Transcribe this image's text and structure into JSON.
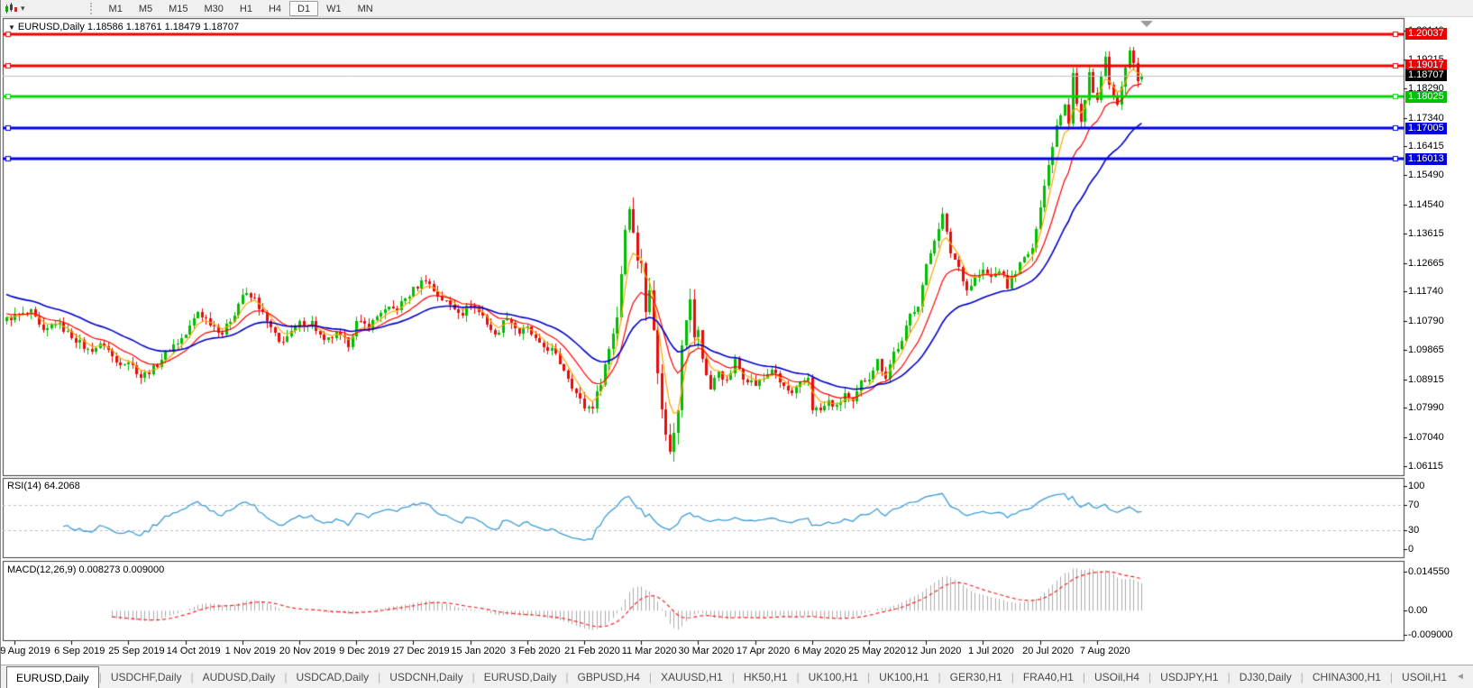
{
  "toolbar": {
    "caret": "▾",
    "periods": [
      "M1",
      "M5",
      "M15",
      "M30",
      "H1",
      "H4",
      "D1",
      "W1",
      "MN"
    ],
    "active_period": "D1"
  },
  "main_chart": {
    "title": "EURUSD,Daily  1.18586 1.18761 1.18479 1.18707",
    "symbol": "EURUSD,Daily",
    "ohlc": {
      "open": 1.18586,
      "high": 1.18761,
      "low": 1.18479,
      "close": 1.18707
    },
    "price_ticks": [
      "1.20140",
      "1.19215",
      "1.18290",
      "1.17340",
      "1.16415",
      "1.15490",
      "1.14540",
      "1.13615",
      "1.12665",
      "1.11740",
      "1.10790",
      "1.09865",
      "1.08915",
      "1.07990",
      "1.07040",
      "1.06115"
    ],
    "price_tags": [
      {
        "label": "1.20037",
        "color": "#EE0000"
      },
      {
        "label": "1.19017",
        "color": "#EE0000"
      },
      {
        "label": "1.18707",
        "color": "#000000"
      },
      {
        "label": "1.18025",
        "color": "#00BE00"
      },
      {
        "label": "1.17005",
        "color": "#0000E0"
      },
      {
        "label": "1.16013",
        "color": "#0000E0"
      }
    ],
    "hlines": [
      {
        "price": 1.20037,
        "color": "#F20000",
        "thickness": 3
      },
      {
        "price": 1.19017,
        "color": "#F20000",
        "thickness": 3
      },
      {
        "price": 1.18025,
        "color": "#00D900",
        "thickness": 3
      },
      {
        "price": 1.17005,
        "color": "#0000EE",
        "thickness": 3
      },
      {
        "price": 1.16013,
        "color": "#0000EE",
        "thickness": 3
      }
    ],
    "current_price_line": {
      "price": 1.18707,
      "color": "#C0C0C0"
    }
  },
  "rsi_pane": {
    "label": "RSI(14) 64.2068",
    "period": 14,
    "value": 64.2068,
    "axis_labels": [
      "100",
      "70",
      "30",
      "0"
    ],
    "level_lines": [
      70,
      30
    ],
    "line_color": "#3E9CD8"
  },
  "macd_pane": {
    "label": "MACD(12,26,9) 0.008273 0.009000",
    "axis_labels": [
      "0.014550",
      "0.00",
      "-0.009000"
    ],
    "hist_color": "#ABABAB",
    "signal_color": "#FF2020"
  },
  "date_axis": {
    "labels": [
      "19 Aug 2019",
      "6 Sep 2019",
      "25 Sep 2019",
      "14 Oct 2019",
      "1 Nov 2019",
      "20 Nov 2019",
      "9 Dec 2019",
      "27 Dec 2019",
      "15 Jan 2020",
      "3 Feb 2020",
      "21 Feb 2020",
      "11 Mar 2020",
      "30 Mar 2020",
      "17 Apr 2020",
      "6 May 2020",
      "25 May 2020",
      "12 Jun 2020",
      "1 Jul 2020",
      "20 Jul 2020",
      "7 Aug 2020"
    ]
  },
  "tab_bar": {
    "active_index": 0,
    "tabs": [
      "EURUSD,Daily",
      "USDCHF,Daily",
      "AUDUSD,Daily",
      "USDCAD,Daily",
      "USDCNH,Daily",
      "EURUSD,Daily",
      "GBPUSD,H4",
      "XAUUSD,H1",
      "HK50,H1",
      "UK100,H1",
      "UK100,H1",
      "GER30,H1",
      "FRA40,H1",
      "USOil,H4",
      "USDJPY,H1",
      "DJ30,Daily",
      "CHINA300,H1",
      "USOil,H1"
    ],
    "scroll_left": "◄",
    "scroll_right": "►"
  },
  "chart_data": {
    "type": "candlestick",
    "symbol": "EURUSD",
    "timeframe": "Daily",
    "bars_count": 280,
    "x_axis": {
      "bars_per_tick": 14,
      "first_tick_bar_index": 2,
      "tick_labels": [
        "19 Aug 2019",
        "6 Sep 2019",
        "25 Sep 2019",
        "14 Oct 2019",
        "1 Nov 2019",
        "20 Nov 2019",
        "9 Dec 2019",
        "27 Dec 2019",
        "15 Jan 2020",
        "3 Feb 2020",
        "21 Feb 2020",
        "11 Mar 2020",
        "30 Mar 2020",
        "17 Apr 2020",
        "6 May 2020",
        "25 May 2020",
        "12 Jun 2020",
        "1 Jul 2020",
        "20 Jul 2020",
        "7 Aug 2020"
      ]
    },
    "y_axis": {
      "visible_high": 1.2058,
      "visible_low": 1.058
    },
    "last_bar": {
      "open": 1.18586,
      "high": 1.18761,
      "low": 1.18479,
      "close": 1.18707
    },
    "candle_colors": {
      "bull": "#00BE00",
      "bear": "#E60C0C"
    },
    "moving_averages": [
      {
        "name": "ma-fast",
        "period": 5,
        "seed": 1.1095,
        "color": "#FFA500",
        "width": 1.2
      },
      {
        "name": "ma-mid",
        "period": 13,
        "seed": 1.1105,
        "color": "#FF0000",
        "width": 1.2
      },
      {
        "name": "ma-slow",
        "period": 30,
        "seed": 1.117,
        "color": "#0000CC",
        "width": 1.6
      }
    ],
    "rsi": {
      "period": 14,
      "last": 64.2068,
      "levels": [
        70,
        30
      ]
    },
    "macd": {
      "fast": 12,
      "slow": 26,
      "signal": 9,
      "last_hist": 0.008273,
      "last_signal": 0.009,
      "axis_max": 0.01455,
      "axis_min": -0.009
    },
    "close_waypoints": [
      [
        0,
        1.1085
      ],
      [
        2,
        1.1095
      ],
      [
        6,
        1.1105
      ],
      [
        9,
        1.104
      ],
      [
        12,
        1.1075
      ],
      [
        16,
        1.103
      ],
      [
        20,
        1.0985
      ],
      [
        24,
        1.1005
      ],
      [
        27,
        1.0945
      ],
      [
        30,
        1.095
      ],
      [
        33,
        1.09
      ],
      [
        36,
        1.0925
      ],
      [
        40,
        1.099
      ],
      [
        44,
        1.1035
      ],
      [
        47,
        1.111
      ],
      [
        50,
        1.1075
      ],
      [
        53,
        1.104
      ],
      [
        56,
        1.1105
      ],
      [
        58,
        1.1165
      ],
      [
        61,
        1.115
      ],
      [
        64,
        1.1075
      ],
      [
        67,
        1.101
      ],
      [
        70,
        1.104
      ],
      [
        72,
        1.107
      ],
      [
        75,
        1.1075
      ],
      [
        78,
        1.101
      ],
      [
        81,
        1.1035
      ],
      [
        84,
        1.1005
      ],
      [
        86,
        1.1075
      ],
      [
        89,
        1.106
      ],
      [
        92,
        1.111
      ],
      [
        96,
        1.112
      ],
      [
        100,
        1.118
      ],
      [
        103,
        1.1215
      ],
      [
        106,
        1.116
      ],
      [
        109,
        1.113
      ],
      [
        112,
        1.1105
      ],
      [
        114,
        1.1135
      ],
      [
        117,
        1.1095
      ],
      [
        120,
        1.103
      ],
      [
        123,
        1.1095
      ],
      [
        126,
        1.104
      ],
      [
        128,
        1.1055
      ],
      [
        131,
        1.1
      ],
      [
        134,
        1.0985
      ],
      [
        137,
        1.0925
      ],
      [
        140,
        1.0845
      ],
      [
        142,
        1.08
      ],
      [
        144,
        1.0805
      ],
      [
        146,
        1.0885
      ],
      [
        148,
        1.099
      ],
      [
        150,
        1.1095
      ],
      [
        152,
        1.1375
      ],
      [
        153,
        1.145
      ],
      [
        154,
        1.136
      ],
      [
        155,
        1.128
      ],
      [
        156,
        1.127
      ],
      [
        157,
        1.1105
      ],
      [
        158,
        1.118
      ],
      [
        159,
        1.106
      ],
      [
        160,
        1.092
      ],
      [
        161,
        1.079
      ],
      [
        162,
        1.072
      ],
      [
        163,
        1.0655
      ],
      [
        164,
        1.072
      ],
      [
        165,
        1.08
      ],
      [
        166,
        1.101
      ],
      [
        167,
        1.109
      ],
      [
        168,
        1.1145
      ],
      [
        169,
        1.103
      ],
      [
        170,
        1.1045
      ],
      [
        171,
        1.096
      ],
      [
        173,
        1.086
      ],
      [
        175,
        1.092
      ],
      [
        177,
        1.088
      ],
      [
        179,
        1.095
      ],
      [
        181,
        1.09
      ],
      [
        184,
        1.0875
      ],
      [
        186,
        1.0895
      ],
      [
        188,
        1.0925
      ],
      [
        190,
        1.088
      ],
      [
        193,
        1.084
      ],
      [
        195,
        1.0875
      ],
      [
        197,
        1.09
      ],
      [
        198,
        1.08
      ],
      [
        200,
        1.079
      ],
      [
        202,
        1.082
      ],
      [
        204,
        1.08
      ],
      [
        206,
        1.0845
      ],
      [
        208,
        1.081
      ],
      [
        210,
        1.088
      ],
      [
        212,
        1.09
      ],
      [
        214,
        1.095
      ],
      [
        216,
        1.09
      ],
      [
        218,
        1.098
      ],
      [
        220,
        1.101
      ],
      [
        222,
        1.11
      ],
      [
        224,
        1.1135
      ],
      [
        226,
        1.1255
      ],
      [
        228,
        1.1345
      ],
      [
        230,
        1.142
      ],
      [
        232,
        1.13
      ],
      [
        234,
        1.1255
      ],
      [
        236,
        1.118
      ],
      [
        238,
        1.1215
      ],
      [
        240,
        1.124
      ],
      [
        242,
        1.122
      ],
      [
        244,
        1.1245
      ],
      [
        246,
        1.119
      ],
      [
        248,
        1.124
      ],
      [
        250,
        1.128
      ],
      [
        252,
        1.131
      ],
      [
        254,
        1.145
      ],
      [
        256,
        1.158
      ],
      [
        258,
        1.171
      ],
      [
        260,
        1.178
      ],
      [
        261,
        1.172
      ],
      [
        262,
        1.188
      ],
      [
        263,
        1.178
      ],
      [
        264,
        1.172
      ],
      [
        265,
        1.179
      ],
      [
        266,
        1.188
      ],
      [
        267,
        1.182
      ],
      [
        268,
        1.179
      ],
      [
        269,
        1.1865
      ],
      [
        270,
        1.193
      ],
      [
        271,
        1.184
      ],
      [
        272,
        1.18
      ],
      [
        273,
        1.177
      ],
      [
        274,
        1.184
      ],
      [
        275,
        1.189
      ],
      [
        276,
        1.195
      ],
      [
        277,
        1.1905
      ],
      [
        278,
        1.1855
      ],
      [
        279,
        1.1871
      ]
    ]
  }
}
